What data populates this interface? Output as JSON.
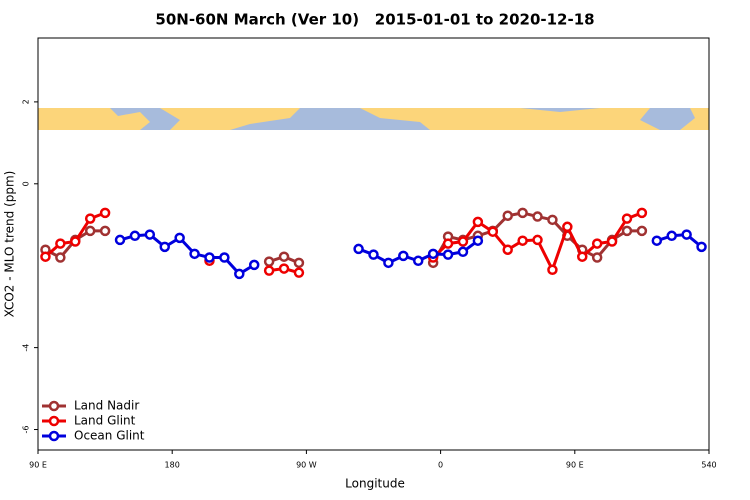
{
  "chart_data": {
    "type": "line",
    "title": "50N-60N March (Ver 10)   2015-01-01 to 2020-12-18",
    "xlabel": "Longitude",
    "ylabel": "XCO2 - MLO trend (ppm)",
    "x": [
      95,
      105,
      115,
      125,
      135,
      145,
      155,
      165,
      175,
      185,
      195,
      205,
      215,
      225,
      235,
      245,
      255,
      265,
      275,
      285,
      295,
      305,
      315,
      325,
      335,
      345,
      355,
      365,
      375,
      385,
      395,
      405,
      415,
      425,
      435,
      445,
      455,
      465,
      475,
      485,
      495,
      505,
      515,
      525,
      535
    ],
    "series": [
      {
        "name": "Land Nadir",
        "color": "#a03232",
        "values": [
          -1.61,
          -1.8,
          -1.37,
          -1.15,
          -1.15,
          null,
          null,
          null,
          null,
          null,
          null,
          null,
          null,
          null,
          null,
          -1.9,
          -1.78,
          -1.93,
          null,
          null,
          null,
          null,
          null,
          null,
          null,
          null,
          -1.93,
          -1.29,
          -1.37,
          -1.27,
          -1.15,
          -0.78,
          -0.71,
          -0.8,
          -0.88,
          -1.27,
          -1.61,
          -1.8,
          -1.37,
          -1.15,
          -1.15,
          null,
          null,
          null,
          null
        ]
      },
      {
        "name": "Land Glint",
        "color": "#ee0000",
        "values": [
          -1.78,
          -1.46,
          -1.41,
          -0.85,
          -0.71,
          null,
          null,
          null,
          null,
          null,
          null,
          -1.88,
          null,
          null,
          null,
          -2.12,
          -2.07,
          -2.17,
          null,
          null,
          null,
          null,
          null,
          null,
          null,
          null,
          -1.8,
          -1.46,
          -1.41,
          -0.93,
          -1.17,
          -1.61,
          -1.39,
          -1.37,
          -2.1,
          -1.05,
          -1.78,
          -1.46,
          -1.41,
          -0.85,
          -0.71,
          null,
          null,
          null,
          null
        ]
      },
      {
        "name": "Ocean Glint",
        "color": "#0000dd",
        "values": [
          null,
          null,
          null,
          null,
          null,
          -1.37,
          -1.27,
          -1.24,
          -1.54,
          -1.32,
          -1.71,
          -1.8,
          -1.8,
          -2.2,
          -1.98,
          null,
          null,
          null,
          null,
          null,
          null,
          -1.59,
          -1.73,
          -1.93,
          -1.76,
          -1.88,
          -1.71,
          -1.73,
          -1.66,
          -1.39,
          null,
          null,
          null,
          null,
          null,
          null,
          null,
          null,
          null,
          null,
          null,
          -1.39,
          -1.27,
          -1.24,
          -1.54
        ]
      }
    ],
    "xlim": [
      90,
      540
    ],
    "xticks": [
      {
        "value": 90,
        "label": "90 E"
      },
      180,
      {
        "value": 270,
        "label": "90 W"
      },
      {
        "value": 360,
        "label": "0"
      },
      {
        "value": 450,
        "label": "90 E"
      },
      540
    ],
    "ylim": [
      -6.5,
      3.56
    ],
    "yticks": [
      -6,
      -4,
      0,
      2
    ],
    "legend": "bottom-left"
  }
}
